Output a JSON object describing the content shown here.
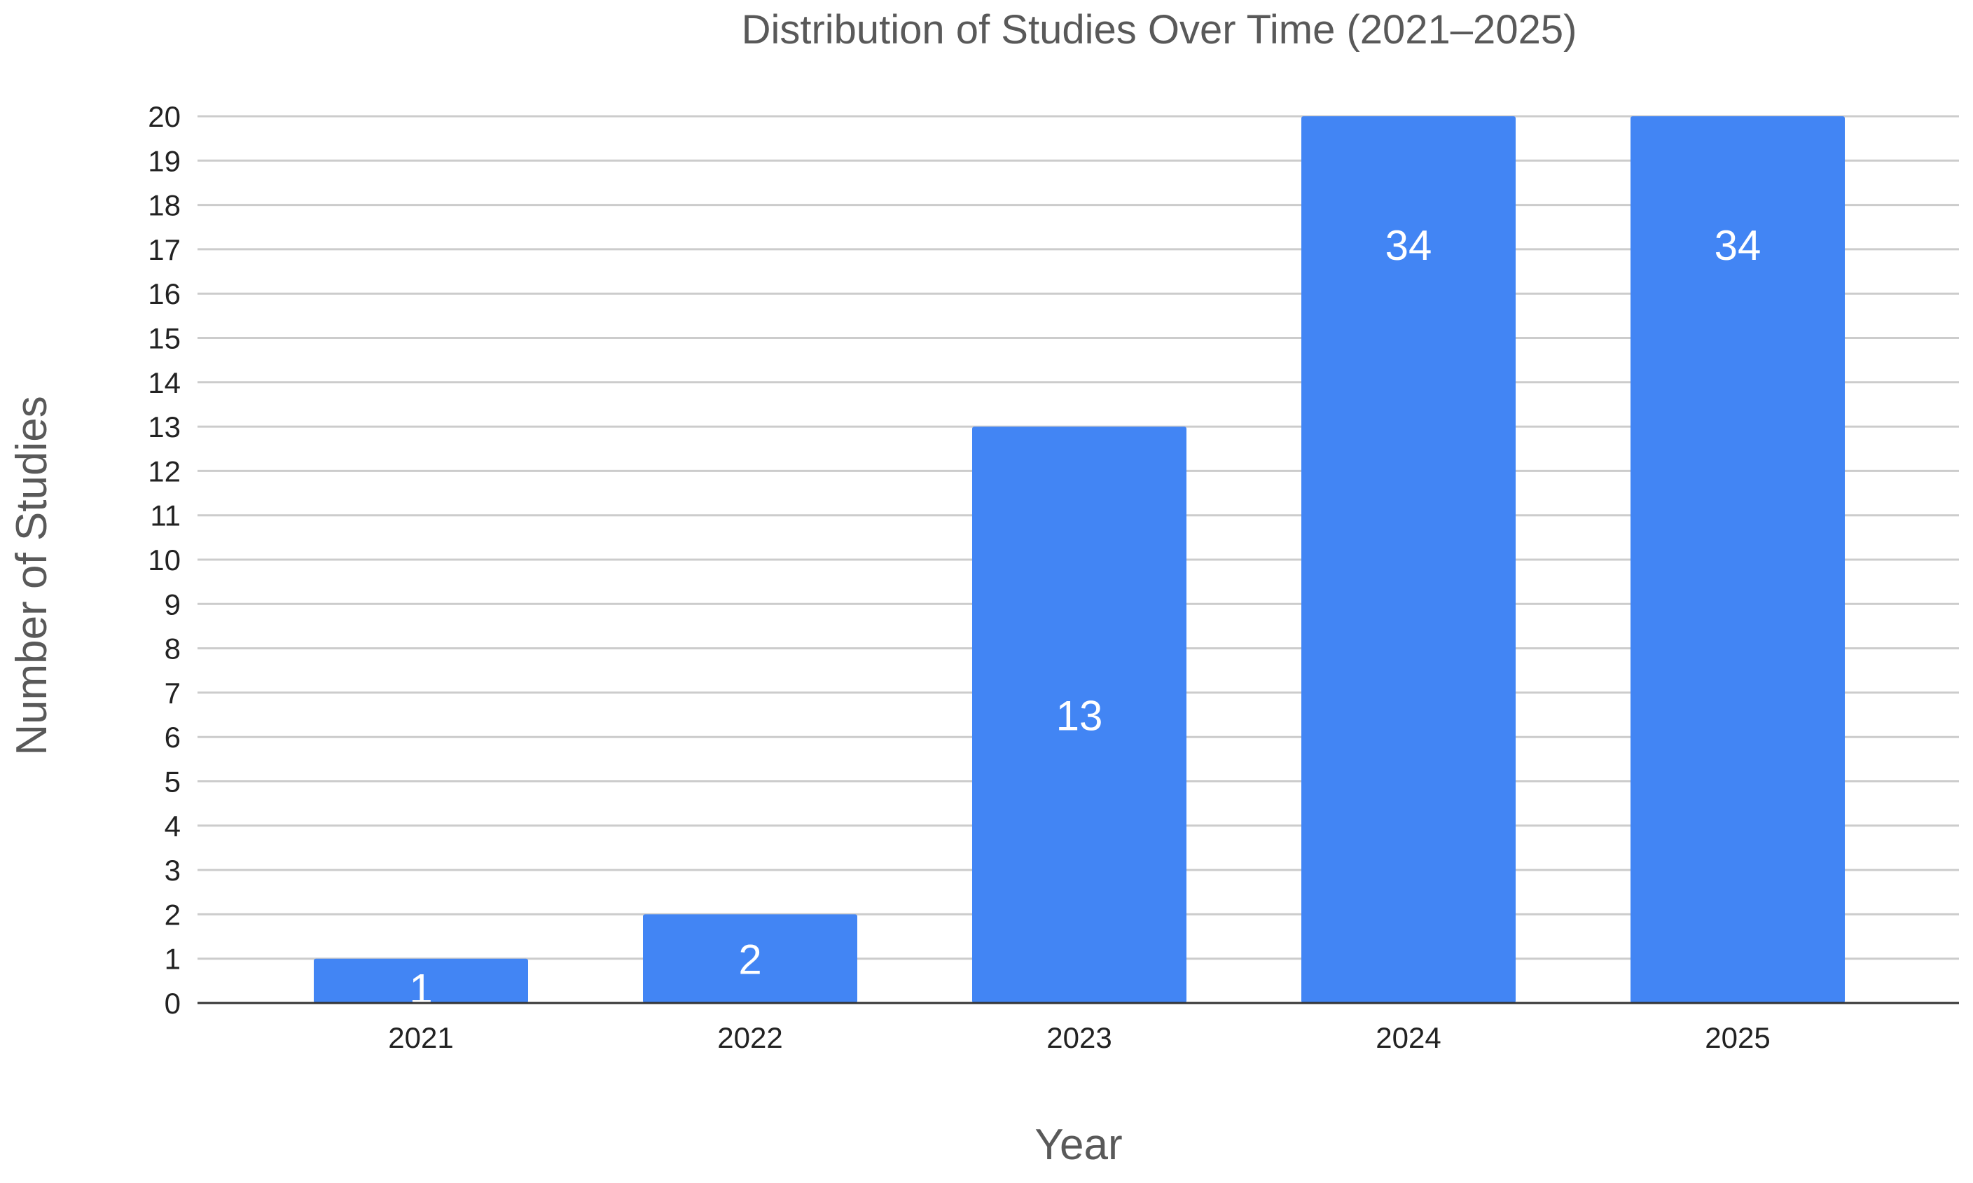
{
  "chart_data": {
    "type": "bar",
    "title": "Distribution of Studies Over Time (2021–2025)",
    "xlabel": "Year",
    "ylabel": "Number of Studies",
    "categories": [
      "2021",
      "2022",
      "2023",
      "2024",
      "2025"
    ],
    "values": [
      1,
      2,
      13,
      34,
      34
    ],
    "data_labels": [
      "1",
      "2",
      "13",
      "34",
      "34"
    ],
    "ylim": [
      0,
      20
    ],
    "yticks": [
      "0",
      "1",
      "2",
      "3",
      "4",
      "5",
      "6",
      "7",
      "8",
      "9",
      "10",
      "11",
      "12",
      "13",
      "14",
      "15",
      "16",
      "17",
      "18",
      "19",
      "20"
    ],
    "grid": true,
    "legend": "none",
    "bar_color": "#4285F4",
    "grid_color": "#cccccc",
    "axis_color": "#333333"
  }
}
